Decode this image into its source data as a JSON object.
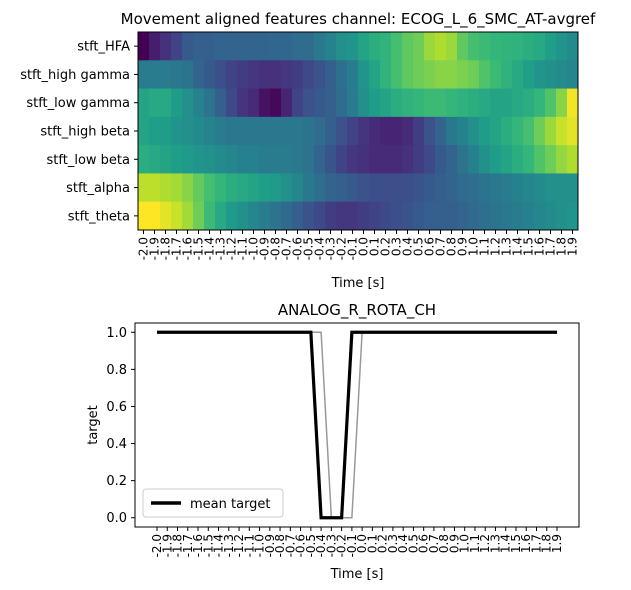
{
  "chart_data": [
    {
      "type": "heatmap",
      "title": "Movement aligned features channel: ECOG_L_6_SMC_AT-avgref",
      "xlabel": "Time [s]",
      "ylabel": "",
      "x_tick_labels": [
        "-2.0",
        "-1.9",
        "-1.8",
        "-1.7",
        "-1.6",
        "-1.5",
        "-1.4",
        "-1.3",
        "-1.2",
        "-1.1",
        "-1.0",
        "-0.9",
        "-0.8",
        "-0.7",
        "-0.6",
        "-0.5",
        "-0.4",
        "-0.3",
        "-0.2",
        "-0.1",
        "0.0",
        "0.1",
        "0.2",
        "0.3",
        "0.4",
        "0.5",
        "0.6",
        "0.7",
        "0.8",
        "0.9",
        "1.0",
        "1.1",
        "1.2",
        "1.3",
        "1.4",
        "1.5",
        "1.6",
        "1.7",
        "1.8",
        "1.9"
      ],
      "rows": [
        "stft_HFA",
        "stft_high gamma",
        "stft_low gamma",
        "stft_high beta",
        "stft_low beta",
        "stft_alpha",
        "stft_theta"
      ],
      "colormap": "viridis",
      "values": [
        [
          0.0,
          0.08,
          0.14,
          0.2,
          0.28,
          0.3,
          0.3,
          0.32,
          0.32,
          0.32,
          0.32,
          0.32,
          0.33,
          0.33,
          0.35,
          0.35,
          0.4,
          0.45,
          0.5,
          0.52,
          0.58,
          0.62,
          0.65,
          0.7,
          0.75,
          0.78,
          0.85,
          0.88,
          0.85,
          0.75,
          0.7,
          0.68,
          0.66,
          0.65,
          0.64,
          0.62,
          0.6,
          0.56,
          0.52,
          0.48
        ],
        [
          0.42,
          0.42,
          0.42,
          0.4,
          0.38,
          0.32,
          0.28,
          0.24,
          0.2,
          0.18,
          0.16,
          0.14,
          0.14,
          0.16,
          0.18,
          0.22,
          0.26,
          0.3,
          0.36,
          0.42,
          0.52,
          0.58,
          0.65,
          0.7,
          0.75,
          0.78,
          0.8,
          0.82,
          0.82,
          0.8,
          0.78,
          0.72,
          0.68,
          0.64,
          0.6,
          0.56,
          0.52,
          0.5,
          0.48,
          0.46
        ],
        [
          0.58,
          0.6,
          0.6,
          0.55,
          0.5,
          0.45,
          0.38,
          0.3,
          0.22,
          0.15,
          0.12,
          0.05,
          0.02,
          0.1,
          0.2,
          0.25,
          0.28,
          0.3,
          0.35,
          0.42,
          0.5,
          0.55,
          0.58,
          0.62,
          0.64,
          0.66,
          0.68,
          0.68,
          0.66,
          0.64,
          0.62,
          0.6,
          0.58,
          0.58,
          0.6,
          0.62,
          0.66,
          0.72,
          0.82,
          0.98
        ],
        [
          0.58,
          0.56,
          0.55,
          0.52,
          0.5,
          0.48,
          0.45,
          0.42,
          0.4,
          0.4,
          0.4,
          0.4,
          0.4,
          0.4,
          0.4,
          0.38,
          0.35,
          0.3,
          0.25,
          0.2,
          0.15,
          0.12,
          0.1,
          0.1,
          0.12,
          0.18,
          0.25,
          0.32,
          0.4,
          0.45,
          0.5,
          0.55,
          0.58,
          0.62,
          0.66,
          0.7,
          0.78,
          0.85,
          0.92,
          0.96
        ],
        [
          0.62,
          0.6,
          0.58,
          0.56,
          0.54,
          0.52,
          0.5,
          0.48,
          0.46,
          0.44,
          0.44,
          0.42,
          0.42,
          0.42,
          0.4,
          0.38,
          0.32,
          0.26,
          0.2,
          0.16,
          0.14,
          0.12,
          0.12,
          0.12,
          0.14,
          0.18,
          0.22,
          0.28,
          0.32,
          0.38,
          0.44,
          0.5,
          0.55,
          0.58,
          0.62,
          0.66,
          0.72,
          0.78,
          0.84,
          0.88
        ],
        [
          0.9,
          0.9,
          0.88,
          0.86,
          0.82,
          0.76,
          0.7,
          0.66,
          0.62,
          0.6,
          0.58,
          0.56,
          0.54,
          0.5,
          0.46,
          0.4,
          0.36,
          0.32,
          0.3,
          0.28,
          0.26,
          0.24,
          0.24,
          0.24,
          0.24,
          0.26,
          0.28,
          0.3,
          0.32,
          0.34,
          0.36,
          0.38,
          0.4,
          0.42,
          0.44,
          0.46,
          0.48,
          0.5,
          0.5,
          0.5
        ],
        [
          1.0,
          1.0,
          0.96,
          0.92,
          0.86,
          0.78,
          0.68,
          0.6,
          0.54,
          0.5,
          0.46,
          0.42,
          0.38,
          0.34,
          0.3,
          0.26,
          0.22,
          0.18,
          0.16,
          0.16,
          0.18,
          0.2,
          0.22,
          0.24,
          0.26,
          0.28,
          0.3,
          0.3,
          0.3,
          0.32,
          0.34,
          0.36,
          0.38,
          0.4,
          0.42,
          0.44,
          0.46,
          0.48,
          0.5,
          0.52
        ]
      ]
    },
    {
      "type": "line",
      "title": "ANALOG_R_ROTA_CH",
      "xlabel": "Time [s]",
      "ylabel": "target",
      "x_tick_labels": [
        "-2.0",
        "-1.9",
        "-1.8",
        "-1.7",
        "-1.6",
        "-1.5",
        "-1.4",
        "-1.3",
        "-1.2",
        "-1.1",
        "-1.0",
        "-0.9",
        "-0.8",
        "-0.7",
        "-0.6",
        "-0.5",
        "-0.4",
        "-0.3",
        "-0.2",
        "-0.1",
        "0.0",
        "0.1",
        "0.2",
        "0.3",
        "0.4",
        "0.5",
        "0.6",
        "0.7",
        "0.8",
        "0.9",
        "1.0",
        "1.1",
        "1.2",
        "1.3",
        "1.4",
        "1.5",
        "1.6",
        "1.7",
        "1.8",
        "1.9"
      ],
      "y_ticks": [
        0.0,
        0.2,
        0.4,
        0.6,
        0.8,
        1.0
      ],
      "ylim": [
        -0.05,
        1.05
      ],
      "legend": {
        "position": "lower-left",
        "label": "mean target"
      },
      "series": [
        {
          "name": "mean target",
          "color": "#000000",
          "x": [
            -2.0,
            -0.5,
            -0.4,
            -0.3,
            -0.2,
            -0.1,
            0.0,
            1.9
          ],
          "y": [
            1.0,
            1.0,
            0.0,
            0.0,
            0.0,
            1.0,
            1.0,
            1.0
          ]
        },
        {
          "color": "#999999",
          "x": [
            -2.0,
            -0.4,
            -0.3,
            -0.1,
            0.0,
            1.9
          ],
          "y": [
            1.0,
            1.0,
            0.0,
            0.0,
            1.0,
            1.0
          ]
        }
      ]
    }
  ]
}
